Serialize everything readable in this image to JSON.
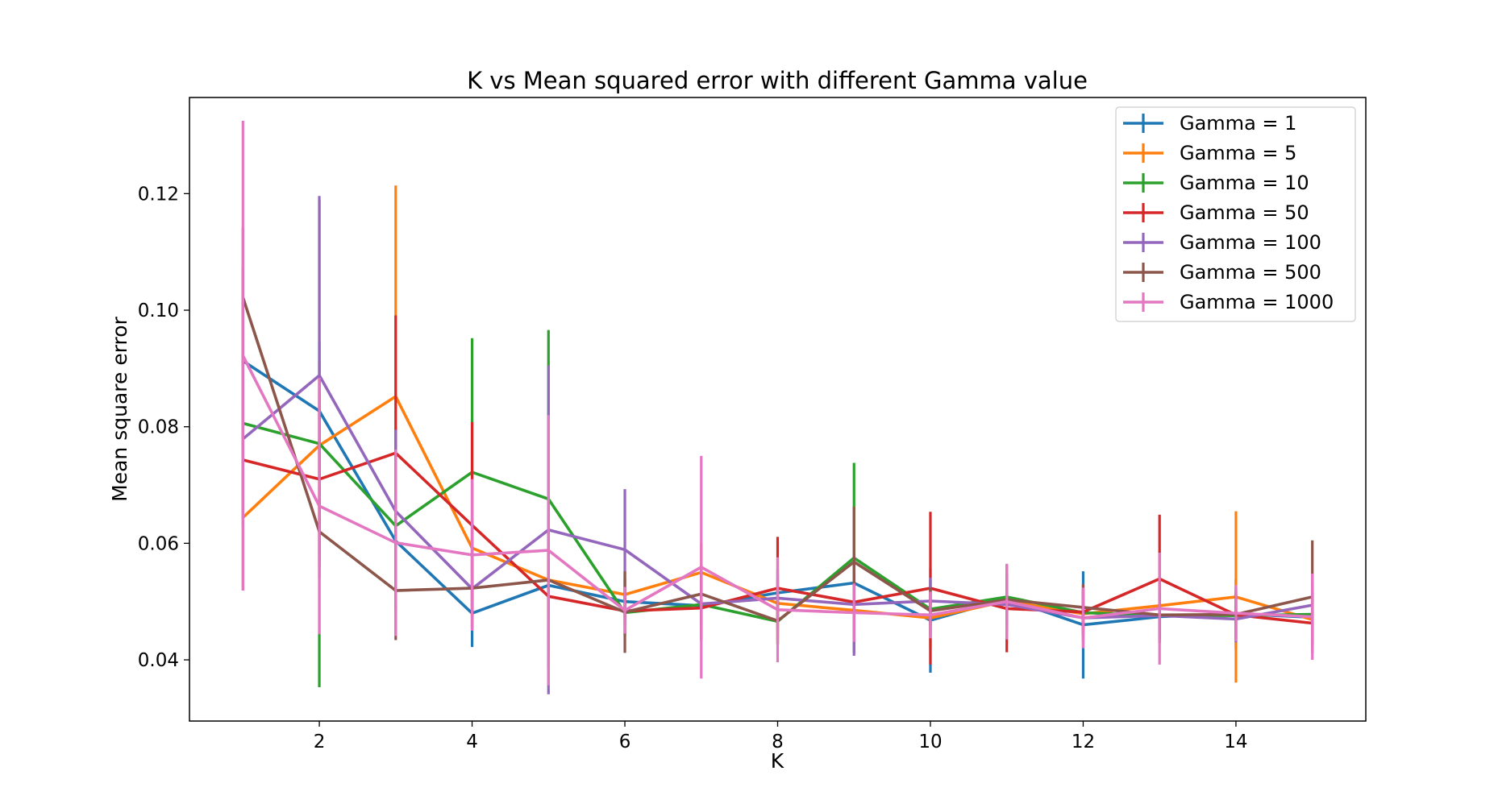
{
  "chart_data": {
    "type": "line",
    "title": "K vs Mean squared error with different Gamma value",
    "xlabel": "K",
    "ylabel": "Mean square error",
    "xlim": [
      0.3,
      15.7
    ],
    "ylim": [
      0.0295,
      0.1365
    ],
    "x_ticks": [
      2,
      4,
      6,
      8,
      10,
      12,
      14
    ],
    "y_ticks": [
      0.04,
      0.06,
      0.08,
      0.1,
      0.12
    ],
    "y_tick_labels": [
      "0.04",
      "0.06",
      "0.08",
      "0.10",
      "0.12"
    ],
    "grid": false,
    "legend_position": "top-right",
    "x": [
      1,
      2,
      3,
      4,
      5,
      6,
      7,
      8,
      9,
      10,
      11,
      12,
      13,
      14,
      15
    ],
    "series": [
      {
        "name": "Gamma = 1",
        "color": "#1f77b4",
        "values": [
          0.0913,
          0.0827,
          0.0604,
          0.048,
          0.0528,
          0.05,
          0.0493,
          0.0515,
          0.0532,
          0.0468,
          0.0505,
          0.046,
          0.0474,
          0.0479,
          0.0473
        ],
        "errors": [
          0.016,
          0.012,
          0.012,
          0.0058,
          0.012,
          0.004,
          0.006,
          0.004,
          0.005,
          0.009,
          0.004,
          0.0092,
          0.004,
          0.006,
          0.004
        ]
      },
      {
        "name": "Gamma = 5",
        "color": "#ff7f0e",
        "values": [
          0.0644,
          0.0768,
          0.0852,
          0.0592,
          0.0537,
          0.0512,
          0.055,
          0.0497,
          0.0485,
          0.0472,
          0.0501,
          0.0479,
          0.0493,
          0.0508,
          0.0469
        ],
        "errors": [
          0.0125,
          0.0145,
          0.0362,
          0.005,
          0.008,
          0.004,
          0.005,
          0.004,
          0.005,
          0.005,
          0.004,
          0.005,
          0.005,
          0.0147,
          0.004
        ]
      },
      {
        "name": "Gamma = 10",
        "color": "#2ca02c",
        "values": [
          0.0806,
          0.0771,
          0.063,
          0.0722,
          0.0676,
          0.0481,
          0.0495,
          0.0466,
          0.0575,
          0.0487,
          0.0508,
          0.0481,
          0.0476,
          0.0476,
          0.0478
        ],
        "errors": [
          0.012,
          0.0418,
          0.012,
          0.023,
          0.029,
          0.004,
          0.005,
          0.004,
          0.0163,
          0.005,
          0.004,
          0.004,
          0.004,
          0.004,
          0.004
        ]
      },
      {
        "name": "Gamma = 50",
        "color": "#d62728",
        "values": [
          0.0743,
          0.071,
          0.0755,
          0.0631,
          0.0509,
          0.0484,
          0.0489,
          0.0523,
          0.0499,
          0.0523,
          0.0488,
          0.0482,
          0.0539,
          0.0477,
          0.0463
        ],
        "errors": [
          0.01,
          0.015,
          0.0236,
          0.0177,
          0.008,
          0.004,
          0.005,
          0.0088,
          0.005,
          0.0131,
          0.0075,
          0.004,
          0.011,
          0.004,
          0.004
        ]
      },
      {
        "name": "Gamma = 100",
        "color": "#9467bd",
        "values": [
          0.0779,
          0.0888,
          0.0655,
          0.0522,
          0.0623,
          0.0589,
          0.0496,
          0.0506,
          0.0495,
          0.0501,
          0.0495,
          0.0472,
          0.0476,
          0.047,
          0.0494
        ],
        "errors": [
          0.015,
          0.0308,
          0.014,
          0.007,
          0.0282,
          0.0104,
          0.006,
          0.004,
          0.0088,
          0.004,
          0.004,
          0.004,
          0.004,
          0.004,
          0.004
        ]
      },
      {
        "name": "Gamma = 500",
        "color": "#8c564b",
        "values": [
          0.1022,
          0.062,
          0.0519,
          0.0523,
          0.0537,
          0.0482,
          0.0513,
          0.0467,
          0.0568,
          0.0484,
          0.0503,
          0.049,
          0.0477,
          0.0478,
          0.0508
        ],
        "errors": [
          0.012,
          0.008,
          0.0085,
          0.005,
          0.006,
          0.007,
          0.005,
          0.004,
          0.0095,
          0.004,
          0.004,
          0.004,
          0.004,
          0.0045,
          0.0097
        ]
      },
      {
        "name": "Gamma = 1000",
        "color": "#e377c2",
        "values": [
          0.0922,
          0.0664,
          0.0601,
          0.058,
          0.0588,
          0.0485,
          0.0559,
          0.0486,
          0.0481,
          0.0477,
          0.05,
          0.0472,
          0.0488,
          0.048,
          0.0474
        ],
        "errors": [
          0.0403,
          0.022,
          0.016,
          0.013,
          0.0232,
          0.004,
          0.0191,
          0.009,
          0.005,
          0.004,
          0.0065,
          0.0052,
          0.0096,
          0.0048,
          0.0074
        ]
      }
    ]
  }
}
